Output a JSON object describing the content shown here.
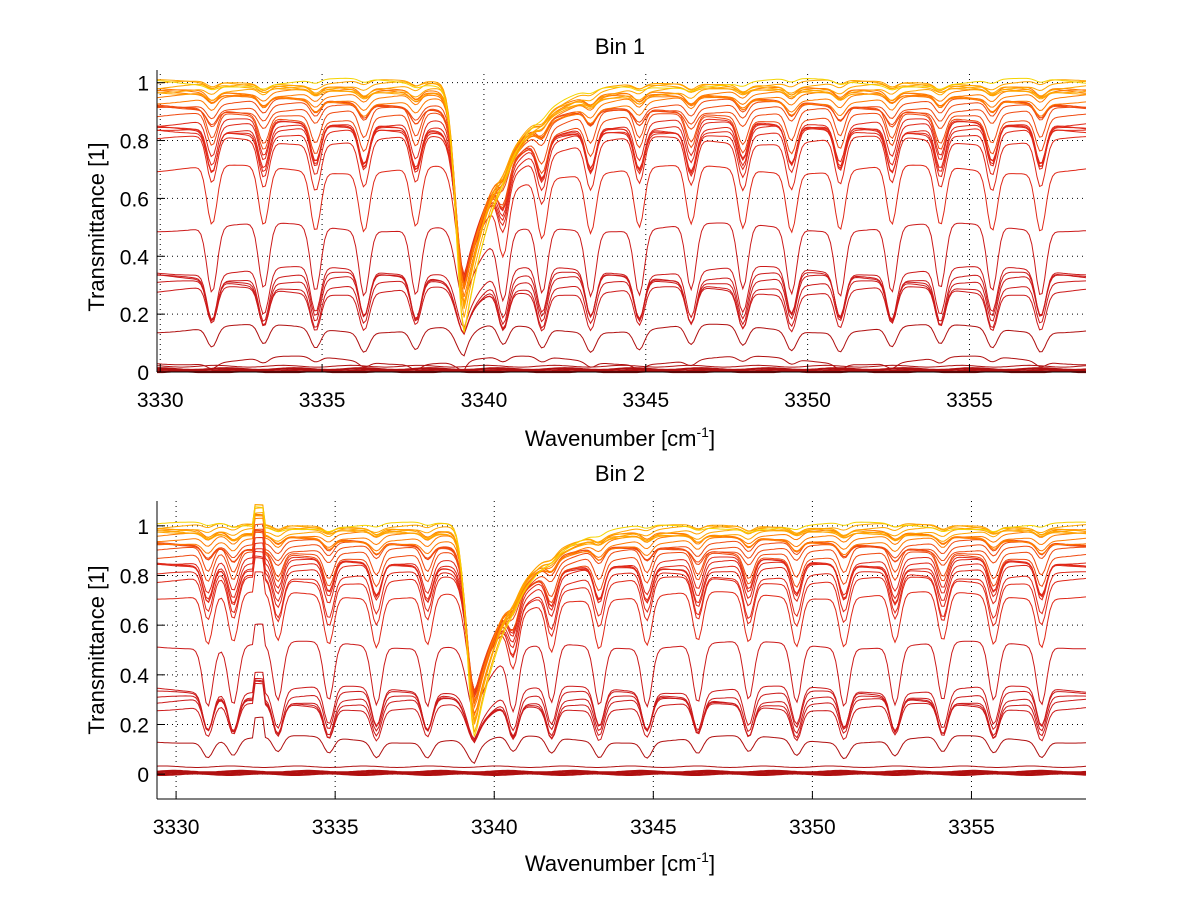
{
  "figure": {
    "background": "#ffffff"
  },
  "chart_data": [
    {
      "type": "line",
      "title": "Bin 1",
      "xlabel": "Wavenumber [cm",
      "xlabel_superscript": "-1",
      "xlabel_suffix": "]",
      "ylabel": "Transmittance [1]",
      "xlim": [
        3329.9,
        3358.6
      ],
      "ylim": [
        0,
        1.03
      ],
      "xticks": [
        3330,
        3335,
        3340,
        3345,
        3350,
        3355
      ],
      "xtick_labels": [
        "3330",
        "3335",
        "3340",
        "3345",
        "3350",
        "3355"
      ],
      "yticks": [
        0,
        0.2,
        0.4,
        0.6,
        0.8,
        1
      ],
      "ytick_labels": [
        "0",
        "0.2",
        "0.4",
        "0.6",
        "0.8",
        "1"
      ],
      "grid": true,
      "grid_style": "dotted",
      "legend": "none",
      "series_description": "Family of ~40 transmittance spectra (colormap red→orange→yellow, near-1 curves yellow/cyan/blue); regularly spaced absorption lines every ~1.6 cm-1 and a strong broad line at ~3339.4 cm-1",
      "absorption_lines": [
        3331.6,
        3333.2,
        3334.8,
        3336.3,
        3337.9,
        3339.4,
        3340.6,
        3341.8,
        3343.3,
        3344.8,
        3346.4,
        3348.0,
        3349.5,
        3351.0,
        3352.6,
        3354.1,
        3355.7,
        3357.2
      ],
      "baseline_levels": [
        1.0,
        0.995,
        0.99,
        0.985,
        0.98,
        0.975,
        0.97,
        0.965,
        0.96,
        0.95,
        0.94,
        0.93,
        0.92,
        0.91,
        0.9,
        0.88,
        0.86,
        0.85,
        0.84,
        0.84,
        0.83,
        0.8,
        0.7,
        0.5,
        0.35,
        0.33,
        0.32,
        0.3,
        0.28,
        0.15,
        0.04,
        0.02,
        0.01,
        0.005,
        0.0
      ]
    },
    {
      "type": "line",
      "title": "Bin 2",
      "xlabel": "Wavenumber [cm",
      "xlabel_superscript": "-1",
      "xlabel_suffix": "]",
      "ylabel": "Transmittance [1]",
      "xlim": [
        3329.4,
        3358.6
      ],
      "ylim": [
        -0.1,
        1.1
      ],
      "xticks": [
        3330,
        3335,
        3340,
        3345,
        3350,
        3355
      ],
      "xtick_labels": [
        "3330",
        "3335",
        "3340",
        "3345",
        "3350",
        "3355"
      ],
      "yticks": [
        0,
        0.2,
        0.4,
        0.6,
        0.8,
        1
      ],
      "ytick_labels": [
        "0",
        "0.2",
        "0.4",
        "0.6",
        "0.8",
        "1"
      ],
      "grid": true,
      "grid_style": "dotted",
      "legend": "none",
      "series_description": "Family of ~40 transmittance spectra (same colormap); noisy region 3330–3333 cm-1 with spike at ~3332.6 cm-1; strong line at ~3339.4 cm-1",
      "absorption_lines": [
        3331.0,
        3331.8,
        3333.2,
        3334.8,
        3336.3,
        3337.9,
        3339.4,
        3340.6,
        3341.8,
        3343.3,
        3344.8,
        3346.4,
        3348.0,
        3349.5,
        3351.0,
        3352.6,
        3354.1,
        3355.7,
        3357.2
      ],
      "spike_at": 3332.6,
      "baseline_levels": [
        1.0,
        0.995,
        0.99,
        0.985,
        0.98,
        0.975,
        0.97,
        0.96,
        0.95,
        0.94,
        0.93,
        0.92,
        0.91,
        0.9,
        0.88,
        0.86,
        0.85,
        0.84,
        0.83,
        0.8,
        0.78,
        0.72,
        0.52,
        0.34,
        0.32,
        0.3,
        0.29,
        0.27,
        0.14,
        0.03,
        0.01,
        0.005,
        0.0
      ]
    }
  ]
}
